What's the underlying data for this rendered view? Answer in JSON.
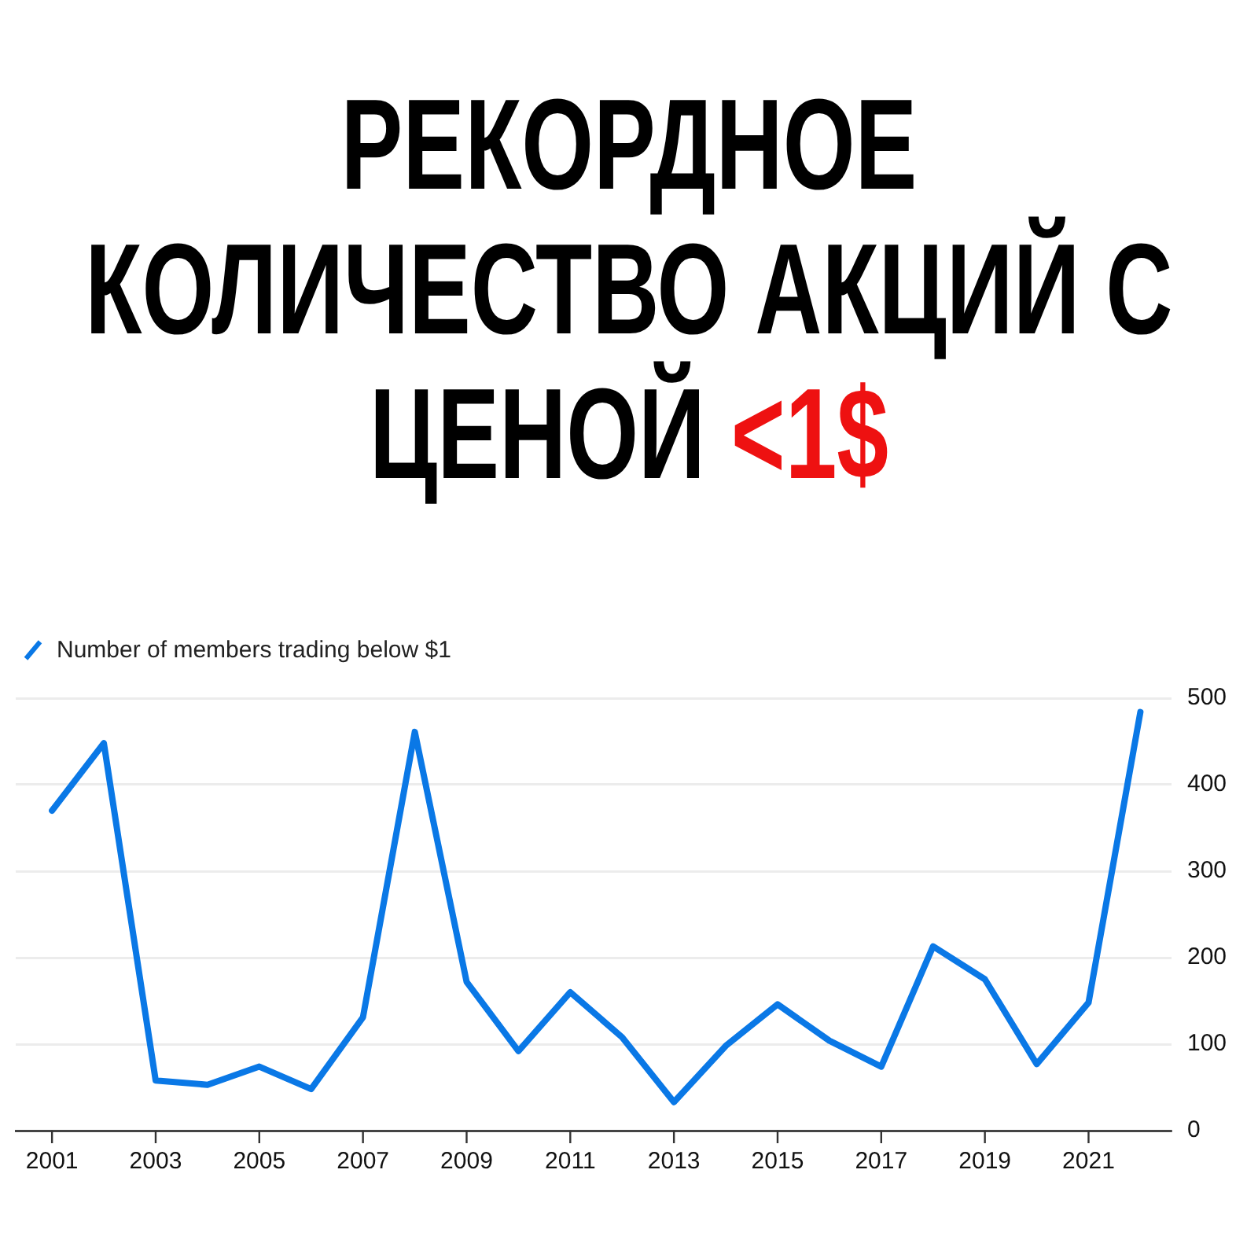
{
  "chart_data": {
    "type": "line",
    "title": "РЕКОРДНОЕ КОЛИЧЕСТВО АКЦИЙ С ЦЕНОЙ <1$",
    "x": [
      2001,
      2002,
      2003,
      2004,
      2005,
      2006,
      2007,
      2008,
      2009,
      2010,
      2011,
      2012,
      2013,
      2014,
      2015,
      2016,
      2017,
      2018,
      2019,
      2020,
      2021,
      2022
    ],
    "series": [
      {
        "name": "Number of members trading below $1",
        "color": "#0a78e6",
        "values": [
          370,
          448,
          58,
          53,
          74,
          48,
          131,
          461,
          172,
          92,
          160,
          108,
          33,
          98,
          146,
          104,
          74,
          213,
          175,
          77,
          148,
          484
        ]
      }
    ],
    "xlim": [
      2000.3,
      2022.6
    ],
    "xticks": [
      2001,
      2003,
      2005,
      2007,
      2009,
      2011,
      2013,
      2015,
      2017,
      2019,
      2021
    ],
    "ylim": [
      0,
      500
    ],
    "yticks": [
      0,
      100,
      200,
      300,
      400,
      500
    ],
    "grid": "y",
    "legend": "top left",
    "marker": "none",
    "line_style": "solid"
  }
}
